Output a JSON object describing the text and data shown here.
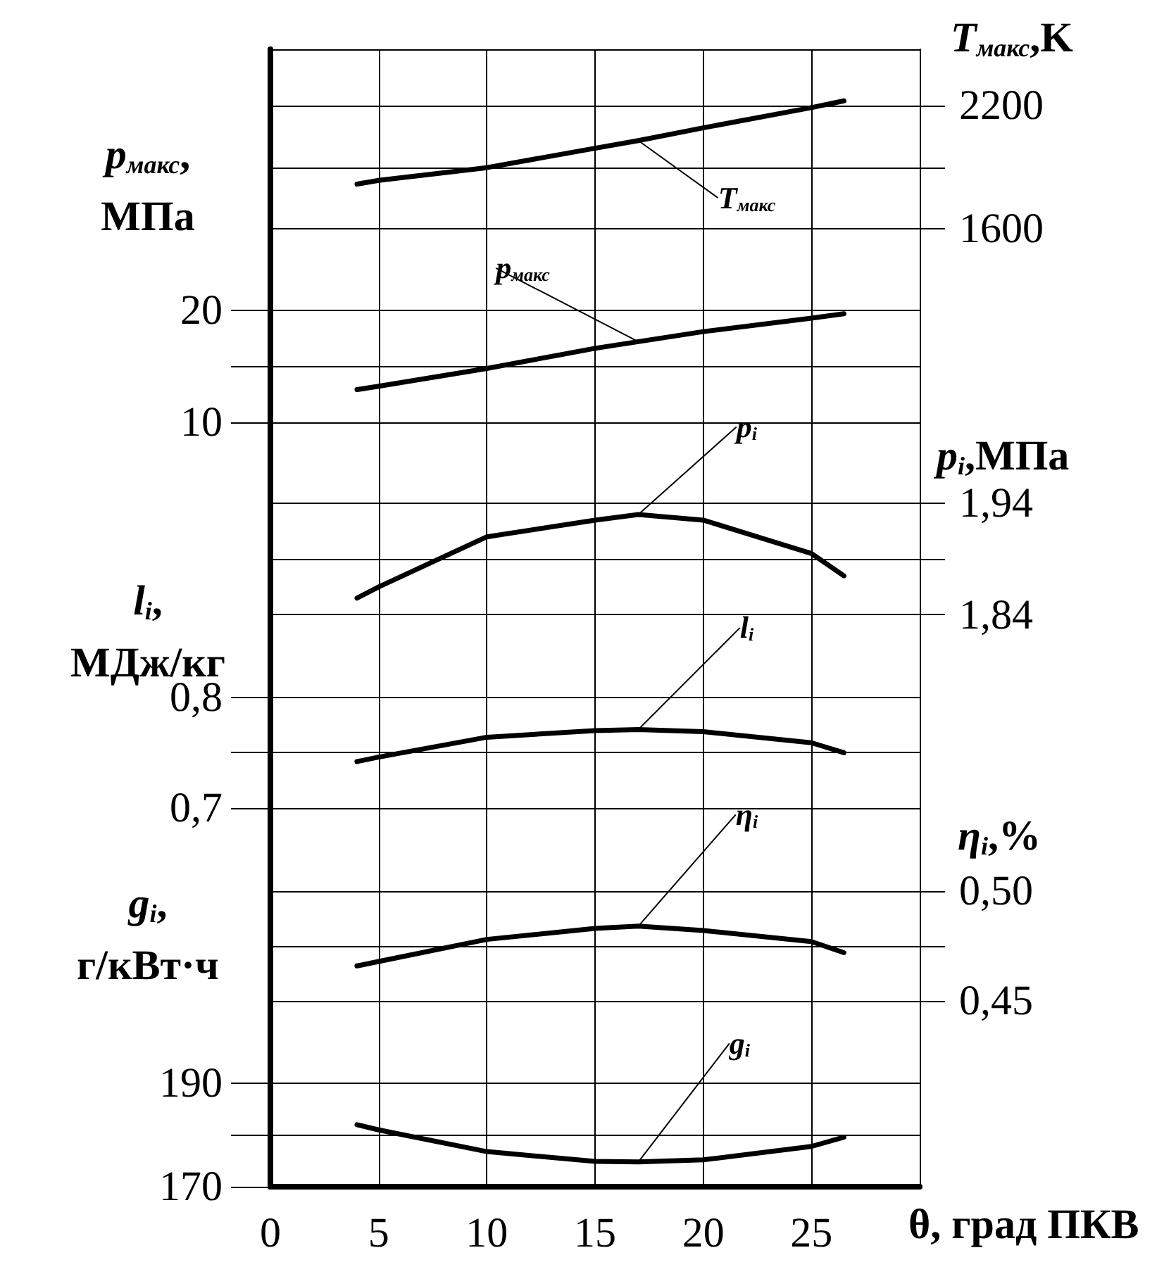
{
  "chart_data": [
    {
      "type": "line",
      "ylabel": "p$_{макс}$,\nМПа",
      "y2label": "T$_{макс}$,K",
      "x": [
        4,
        5,
        10,
        15,
        17,
        20,
        25,
        26.5
      ],
      "xlim": [
        0,
        30
      ],
      "xticks": [
        0,
        5,
        10,
        15,
        20,
        25
      ],
      "tick_labels": "y",
      "ylim": [
        7.7,
        43.4
      ],
      "yticks": [
        10,
        {
          "value": 15,
          "label": null
        },
        20
      ],
      "y2lim": [
        540,
        2472
      ],
      "y2ticks": [
        1600,
        {
          "value": 1900,
          "label": null
        },
        2200
      ],
      "grid": true,
      "line_style": "solid",
      "series": [
        {
          "name": "T$_{макс}$",
          "color": "#000000",
          "axis": "y2",
          "values": [
            1818,
            1836,
            1898,
            1992,
            2029,
            2091,
            2189,
            2222
          ]
        },
        {
          "name": "p$_{макс}$",
          "color": "#000000",
          "values": [
            12.9,
            13.2,
            14.8,
            16.6,
            17.2,
            18.1,
            19.3,
            19.7
          ]
        }
      ]
    },
    {
      "type": "line",
      "ylabel": "l$_{i}$,\nМДж/кг",
      "y2label": "p$_{i}$,МПа",
      "x": [
        4,
        5,
        10,
        15,
        17,
        20,
        25,
        26.5
      ],
      "xlim": [
        0,
        30
      ],
      "xticks": [
        0,
        5,
        10,
        15,
        20,
        25
      ],
      "tick_labels": "y",
      "ylim": [
        0.663,
        1.026
      ],
      "yticks": [
        {
          "value": 0.7,
          "label": "0,7"
        },
        {
          "value": 0.75,
          "label": null
        },
        {
          "value": 0.8,
          "label": "0,8"
        }
      ],
      "y2lim": [
        1.63,
        1.99
      ],
      "y2ticks": [
        {
          "value": 1.84,
          "label": "1,84"
        },
        {
          "value": 1.89,
          "label": null
        },
        {
          "value": 1.94,
          "label": "1,94"
        }
      ],
      "grid": true,
      "line_style": "solid",
      "series": [
        {
          "name": "p$_{i}$",
          "color": "#000000",
          "axis": "y2",
          "values": [
            1.855,
            1.865,
            1.91,
            1.925,
            1.93,
            1.925,
            1.895,
            1.875
          ]
        },
        {
          "name": "l$_{i}$",
          "color": "#000000",
          "values": [
            0.742,
            0.746,
            0.764,
            0.77,
            0.771,
            0.769,
            0.759,
            0.75
          ]
        }
      ]
    },
    {
      "type": "line",
      "xlabel": "θ, град ПКВ",
      "ylabel": "g$_{i}$,\nг/кВт·ч",
      "y2label": "η$_{i}$,%",
      "x": [
        4,
        5,
        10,
        15,
        17,
        20,
        25,
        26.5
      ],
      "xlim": [
        0,
        30
      ],
      "xticks": [
        0,
        5,
        10,
        15,
        20,
        25
      ],
      "ylim": [
        170,
        235.4
      ],
      "yticks": [
        170,
        {
          "value": 180,
          "label": null
        },
        190
      ],
      "y2lim": [
        0.366,
        0.519
      ],
      "y2ticks": [
        {
          "value": 0.45,
          "label": "0,45"
        },
        {
          "value": 0.475,
          "label": null
        },
        {
          "value": 0.5,
          "label": "0,50"
        }
      ],
      "grid": true,
      "line_style": "solid",
      "series": [
        {
          "name": "η$_{i}$",
          "color": "#000000",
          "axis": "y2",
          "values": [
            0.466,
            0.468,
            0.478,
            0.483,
            0.484,
            0.482,
            0.477,
            0.472
          ]
        },
        {
          "name": "g$_{i}$",
          "color": "#000000",
          "values": [
            182.0,
            181.0,
            176.8,
            174.9,
            174.8,
            175.2,
            177.8,
            179.6
          ]
        }
      ]
    }
  ]
}
